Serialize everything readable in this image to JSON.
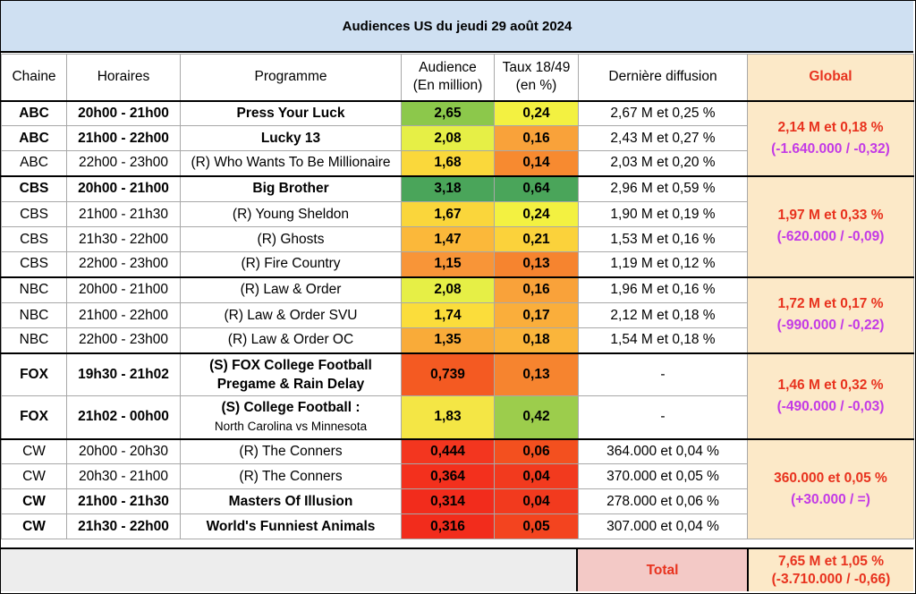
{
  "title": "Audiences US du jeudi 29 août 2024",
  "headers": {
    "chaine": "Chaine",
    "horaires": "Horaires",
    "programme": "Programme",
    "audience_1": "Audience",
    "audience_2": "(En million)",
    "taux_1": "Taux 18/49",
    "taux_2": "(en %)",
    "derniere": "Dernière diffusion",
    "global": "Global"
  },
  "rows": [
    {
      "chaine": "ABC",
      "horaires": "20h00 - 21h00",
      "programme": "Press Your Luck",
      "audience": "2,65",
      "taux": "0,24",
      "derniere": "2,67 M et 0,25 %",
      "bold": true,
      "aud_color": "#8cc84b",
      "taux_color": "#f3f141"
    },
    {
      "chaine": "ABC",
      "horaires": "21h00 - 22h00",
      "programme": "Lucky 13",
      "audience": "2,08",
      "taux": "0,16",
      "derniere": "2,43 M et 0,27 %",
      "bold": true,
      "aud_color": "#e6ef46",
      "taux_color": "#f9a23a"
    },
    {
      "chaine": "ABC",
      "horaires": "22h00 - 23h00",
      "programme": "(R) Who Wants To Be Millionaire",
      "audience": "1,68",
      "taux": "0,14",
      "derniere": "2,03 M et 0,20 %",
      "bold": false,
      "aud_color": "#fad83b",
      "taux_color": "#f78a30"
    },
    {
      "chaine": "CBS",
      "horaires": "20h00 - 21h00",
      "programme": "Big Brother",
      "audience": "3,18",
      "taux": "0,64",
      "derniere": "2,96 M et 0,59 %",
      "bold": true,
      "aud_color": "#4aa55a",
      "taux_color": "#4aa55a"
    },
    {
      "chaine": "CBS",
      "horaires": "21h00 - 21h30",
      "programme": "(R) Young Sheldon",
      "audience": "1,67",
      "taux": "0,24",
      "derniere": "1,90 M et 0,19 %",
      "bold": false,
      "aud_color": "#fad63b",
      "taux_color": "#f3f141"
    },
    {
      "chaine": "CBS",
      "horaires": "21h30 - 22h00",
      "programme": "(R) Ghosts",
      "audience": "1,47",
      "taux": "0,21",
      "derniere": "1,53 M et 0,16 %",
      "bold": false,
      "aud_color": "#fbb83a",
      "taux_color": "#fbd23b"
    },
    {
      "chaine": "CBS",
      "horaires": "22h00 - 23h00",
      "programme": "(R) Fire Country",
      "audience": "1,15",
      "taux": "0,13",
      "derniere": "1,19 M et 0,12 %",
      "bold": false,
      "aud_color": "#f89538",
      "taux_color": "#f6842f"
    },
    {
      "chaine": "NBC",
      "horaires": "20h00 - 21h00",
      "programme": "(R) Law & Order",
      "audience": "2,08",
      "taux": "0,16",
      "derniere": "1,96 M et 0,16 %",
      "bold": false,
      "aud_color": "#e6ef46",
      "taux_color": "#f9a23a"
    },
    {
      "chaine": "NBC",
      "horaires": "21h00 - 22h00",
      "programme": "(R) Law & Order SVU",
      "audience": "1,74",
      "taux": "0,17",
      "derniere": "2,12 M et 0,18 %",
      "bold": false,
      "aud_color": "#fbdd3b",
      "taux_color": "#faae3b"
    },
    {
      "chaine": "NBC",
      "horaires": "22h00 - 23h00",
      "programme": "(R) Law & Order OC",
      "audience": "1,35",
      "taux": "0,18",
      "derniere": "1,54 M et 0,18 %",
      "bold": false,
      "aud_color": "#f9ab39",
      "taux_color": "#fab53b"
    },
    {
      "chaine": "FOX",
      "horaires": "19h30 - 21h02",
      "programme": "(S) FOX College Football",
      "programme2": "Pregame & Rain Delay",
      "audience": "0,739",
      "taux": "0,13",
      "derniere": "-",
      "bold": true,
      "aud_color": "#f45a22",
      "taux_color": "#f6842f"
    },
    {
      "chaine": "FOX",
      "horaires": "21h02 - 00h00",
      "programme": "(S) College Football :",
      "programme2": "North Carolina vs Minnesota",
      "audience": "1,83",
      "taux": "0,42",
      "derniere": "-",
      "bold": true,
      "aud_color": "#f4e645",
      "taux_color": "#9ccd4c"
    },
    {
      "chaine": "CW",
      "horaires": "20h00 - 20h30",
      "programme": "(R) The Conners",
      "audience": "0,444",
      "taux": "0,06",
      "derniere": "364.000 et 0,04 %",
      "bold": false,
      "aud_color": "#f3361f",
      "taux_color": "#f3501f"
    },
    {
      "chaine": "CW",
      "horaires": "20h30 - 21h00",
      "programme": "(R) The Conners",
      "audience": "0,364",
      "taux": "0,04",
      "derniere": "370.000 et 0,05 %",
      "bold": false,
      "aud_color": "#f3301d",
      "taux_color": "#f23a1e"
    },
    {
      "chaine": "CW",
      "horaires": "21h00 - 21h30",
      "programme": "Masters Of Illusion",
      "audience": "0,314",
      "taux": "0,04",
      "derniere": "278.000 et 0,06 %",
      "bold": true,
      "aud_color": "#f22c1c",
      "taux_color": "#f23a1e"
    },
    {
      "chaine": "CW",
      "horaires": "21h30 - 22h00",
      "programme": "World's Funniest Animals",
      "audience": "0,316",
      "taux": "0,05",
      "derniere": "307.000 et 0,04 %",
      "bold": true,
      "aud_color": "#f22c1c",
      "taux_color": "#f3441f"
    }
  ],
  "globals": [
    {
      "main": "2,14 M et 0,18 %",
      "delta": "(-1.640.000 / -0,32)"
    },
    {
      "main": "1,97 M et 0,33 %",
      "delta": "(-620.000 / -0,09)"
    },
    {
      "main": "1,72 M et 0,17 %",
      "delta": "(-990.000 / -0,22)"
    },
    {
      "main": "1,46 M et 0,32 %",
      "delta": "(-490.000 / -0,03)"
    },
    {
      "main": "360.000 et 0,05 %",
      "delta": "(+30.000 / =)"
    }
  ],
  "footer": {
    "total_label": "Total",
    "total_main": "7,65 M et 1,05 %",
    "total_delta": "(-3.710.000 / -0,66)"
  }
}
